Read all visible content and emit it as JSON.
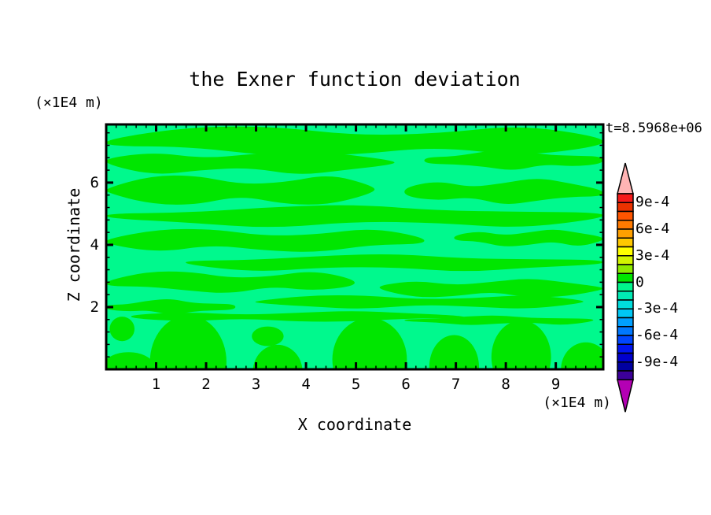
{
  "title": "the Exner function deviation",
  "timestamp": "t=8.5968e+06",
  "axes": {
    "x": {
      "label": "X coordinate",
      "unit": "(×1E4 m)",
      "tick_labels": [
        1,
        2,
        3,
        4,
        5,
        6,
        7,
        8,
        9
      ],
      "minor_step": 0.2,
      "range": [
        0,
        9.95
      ]
    },
    "z": {
      "label": "Z coordinate",
      "unit": "(×1E4 m)",
      "tick_labels": [
        2,
        4,
        6
      ],
      "minor_step": 0.4,
      "range": [
        0,
        7.87
      ]
    }
  },
  "colorbar": {
    "box_colors": [
      "#f51a1a",
      "#eb3200",
      "#ff5500",
      "#ff7a00",
      "#ffa000",
      "#ffc800",
      "#ffff00",
      "#d2f500",
      "#8ceb00",
      "#00e600",
      "#00f58c",
      "#00ebb4",
      "#00dcdc",
      "#00c8f5",
      "#00a0ff",
      "#0078ff",
      "#0046ff",
      "#0014f0",
      "#0000cd",
      "#0000a0",
      "#3c0099"
    ],
    "arrow_top_color": "#ffb4b4",
    "arrow_bottom_color": "#b400b4",
    "labels": [
      {
        "text": "9e-4",
        "level": 1
      },
      {
        "text": "6e-4",
        "level": 4
      },
      {
        "text": "3e-4",
        "level": 7
      },
      {
        "text": "0",
        "level": 10
      },
      {
        "text": "-3e-4",
        "level": 13
      },
      {
        "text": "-6e-4",
        "level": 16
      },
      {
        "text": "-9e-4",
        "level": 19
      }
    ]
  },
  "chart_data": {
    "type": "heatmap",
    "subtype": "filled-contour",
    "title": "the Exner function deviation",
    "xlabel": "X coordinate (×1E4 m)",
    "ylabel": "Z coordinate (×1E4 m)",
    "time_annotation": "t=8.5968e+06",
    "x_range": [
      0,
      9.95
    ],
    "z_range": [
      0,
      7.87
    ],
    "contour_interval": "1e-4",
    "colorbar_tick_values": [
      "9e-4",
      "6e-4",
      "3e-4",
      "0",
      "-3e-4",
      "-6e-4",
      "-9e-4"
    ],
    "field_colors": {
      "positive_band_0_to_1e-4": "#00e600",
      "negative_band_-1e-4_to_0": "#00f98d"
    },
    "pattern": {
      "background": "#00f98d",
      "streak_color": "#00e600",
      "bands": [
        {
          "x0": 0.0,
          "x1": 1.0,
          "yc": 0.07,
          "h": 0.09,
          "seed": 1
        },
        {
          "x0": 0.0,
          "x1": 0.58,
          "yc": 0.155,
          "h": 0.07,
          "seed": 2
        },
        {
          "x0": 0.64,
          "x1": 1.0,
          "yc": 0.145,
          "h": 0.06,
          "seed": 3
        },
        {
          "x0": 0.0,
          "x1": 0.54,
          "yc": 0.27,
          "h": 0.09,
          "seed": 4
        },
        {
          "x0": 0.6,
          "x1": 1.0,
          "yc": 0.275,
          "h": 0.075,
          "seed": 5
        },
        {
          "x0": 0.0,
          "x1": 1.0,
          "yc": 0.375,
          "h": 0.065,
          "seed": 6
        },
        {
          "x0": 0.0,
          "x1": 0.64,
          "yc": 0.475,
          "h": 0.07,
          "seed": 7
        },
        {
          "x0": 0.7,
          "x1": 1.0,
          "yc": 0.465,
          "h": 0.05,
          "seed": 8
        },
        {
          "x0": 0.16,
          "x1": 1.0,
          "yc": 0.565,
          "h": 0.05,
          "seed": 9
        },
        {
          "x0": 0.0,
          "x1": 0.5,
          "yc": 0.645,
          "h": 0.065,
          "seed": 10
        },
        {
          "x0": 0.55,
          "x1": 1.0,
          "yc": 0.67,
          "h": 0.055,
          "seed": 11
        },
        {
          "x0": 0.0,
          "x1": 0.26,
          "yc": 0.745,
          "h": 0.045,
          "seed": 12
        },
        {
          "x0": 0.3,
          "x1": 0.96,
          "yc": 0.725,
          "h": 0.04,
          "seed": 13
        },
        {
          "x0": 0.05,
          "x1": 0.72,
          "yc": 0.785,
          "h": 0.032,
          "seed": 14
        },
        {
          "x0": 0.6,
          "x1": 0.98,
          "yc": 0.8,
          "h": 0.028,
          "seed": 15
        }
      ],
      "blobs": [
        {
          "cx": 0.032,
          "cy": 0.835,
          "rx": 0.025,
          "ry": 0.05
        },
        {
          "cx": 0.045,
          "cy": 1.0,
          "rx": 0.055,
          "ry": 0.07
        },
        {
          "cx": 0.165,
          "cy": 0.97,
          "rx": 0.077,
          "ry": 0.19
        },
        {
          "cx": 0.325,
          "cy": 0.865,
          "rx": 0.032,
          "ry": 0.04
        },
        {
          "cx": 0.345,
          "cy": 1.01,
          "rx": 0.05,
          "ry": 0.11
        },
        {
          "cx": 0.53,
          "cy": 0.96,
          "rx": 0.075,
          "ry": 0.17
        },
        {
          "cx": 0.7,
          "cy": 0.99,
          "rx": 0.05,
          "ry": 0.13
        },
        {
          "cx": 0.835,
          "cy": 0.95,
          "rx": 0.06,
          "ry": 0.15
        },
        {
          "cx": 0.965,
          "cy": 1.0,
          "rx": 0.05,
          "ry": 0.11
        }
      ]
    }
  }
}
